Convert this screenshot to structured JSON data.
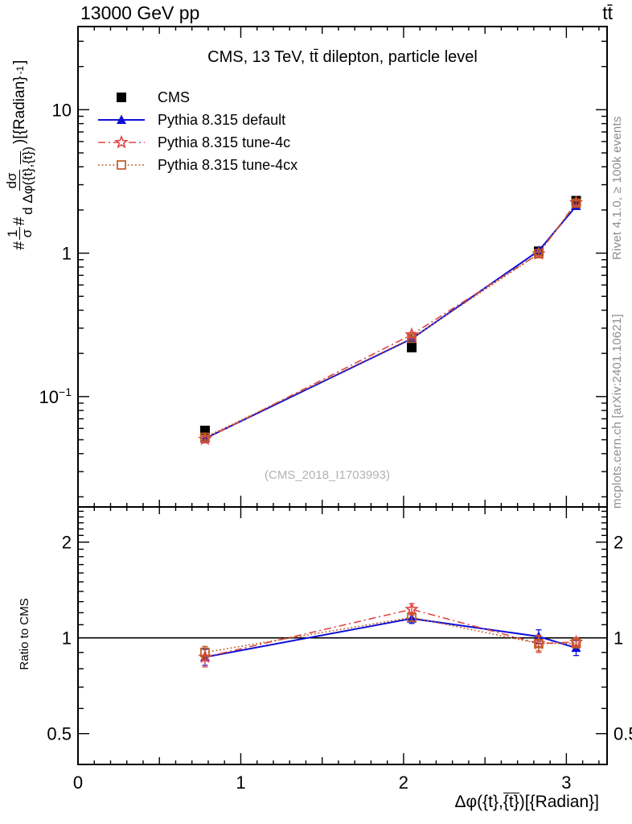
{
  "header": {
    "left": "13000 GeV pp",
    "right": "tt̄"
  },
  "title": "CMS, 13 TeV, tt̄ dilepton, particle level",
  "watermark": "(CMS_2018_I1703993)",
  "side_notes": {
    "top_right": "Rivet 4.1.0, ≥ 100k events",
    "bottom_right": "mcplots.cern.ch [arXiv:2401.10621]"
  },
  "axis_labels": {
    "y_main": {
      "pre": "#",
      "f1_num": "1",
      "f1_den": "σ",
      "mid": "#",
      "f2_num": "dσ",
      "f2_den_pre": "d Δφ({t},",
      "f2_den_bar": "{t}",
      "f2_den_post": ")",
      "suffix": ")[{Radian}",
      "sup": "-1",
      "suffix_end": "]"
    },
    "y_ratio": "Ratio to CMS",
    "x": {
      "pre": "Δφ({t},",
      "bar": "{t}",
      "post": ")[{Radian}]"
    }
  },
  "chart_data": {
    "type": "line",
    "x": [
      0.78,
      2.05,
      2.83,
      3.06
    ],
    "xlim": [
      0,
      3.25
    ],
    "x_major_ticks": [
      0,
      1,
      2,
      3
    ],
    "x_minor_step": 0.1,
    "main_panel": {
      "scale": "log",
      "ylim": [
        0.017,
        38
      ],
      "labeled_ticks": [
        0.1,
        1,
        10
      ],
      "tick_texts": {
        "0.1": "10^-1",
        "1": "1",
        "10": "10"
      }
    },
    "ratio_panel": {
      "scale": "log",
      "ylim": [
        0.4,
        2.58
      ],
      "labeled_ticks": [
        0.5,
        1,
        2
      ],
      "minor_range": [
        0.5,
        2.5
      ],
      "minor_step": 0.1,
      "reference_line": 1
    },
    "series": [
      {
        "name": "CMS",
        "color": "#000000",
        "marker": "square-filled",
        "line": "none",
        "values": [
          0.058,
          0.22,
          1.03,
          2.32
        ],
        "ratio": null
      },
      {
        "name": "Pythia 8.315 default",
        "color": "#0f0fd6",
        "marker": "triangle-filled",
        "line": "solid",
        "values": [
          0.051,
          0.253,
          1.04,
          2.13
        ],
        "errors": [
          0.002,
          0.008,
          0.03,
          0.07
        ],
        "ratio": [
          0.87,
          1.15,
          1.01,
          0.93
        ],
        "ratio_errors": [
          0.05,
          0.04,
          0.05,
          0.05
        ]
      },
      {
        "name": "Pythia 8.315 tune-4c",
        "color": "#e04545",
        "marker": "star-open",
        "line": "dashdot",
        "values": [
          0.0505,
          0.27,
          0.99,
          2.25
        ],
        "errors": [
          0.003,
          0.01,
          0.03,
          0.12
        ],
        "ratio": [
          0.87,
          1.23,
          0.96,
          0.97
        ],
        "ratio_errors": [
          0.06,
          0.05,
          0.06,
          0.03
        ]
      },
      {
        "name": "Pythia 8.315 tune-4cx",
        "color": "#bf5c22",
        "marker": "square-open",
        "line": "dotted",
        "values": [
          0.052,
          0.255,
          0.99,
          2.23
        ],
        "errors": [
          0.002,
          0.008,
          0.025,
          0.07
        ],
        "ratio": [
          0.9,
          1.16,
          0.96,
          0.96
        ],
        "ratio_errors": [
          0.04,
          0.03,
          0.05,
          0.03
        ]
      }
    ]
  }
}
